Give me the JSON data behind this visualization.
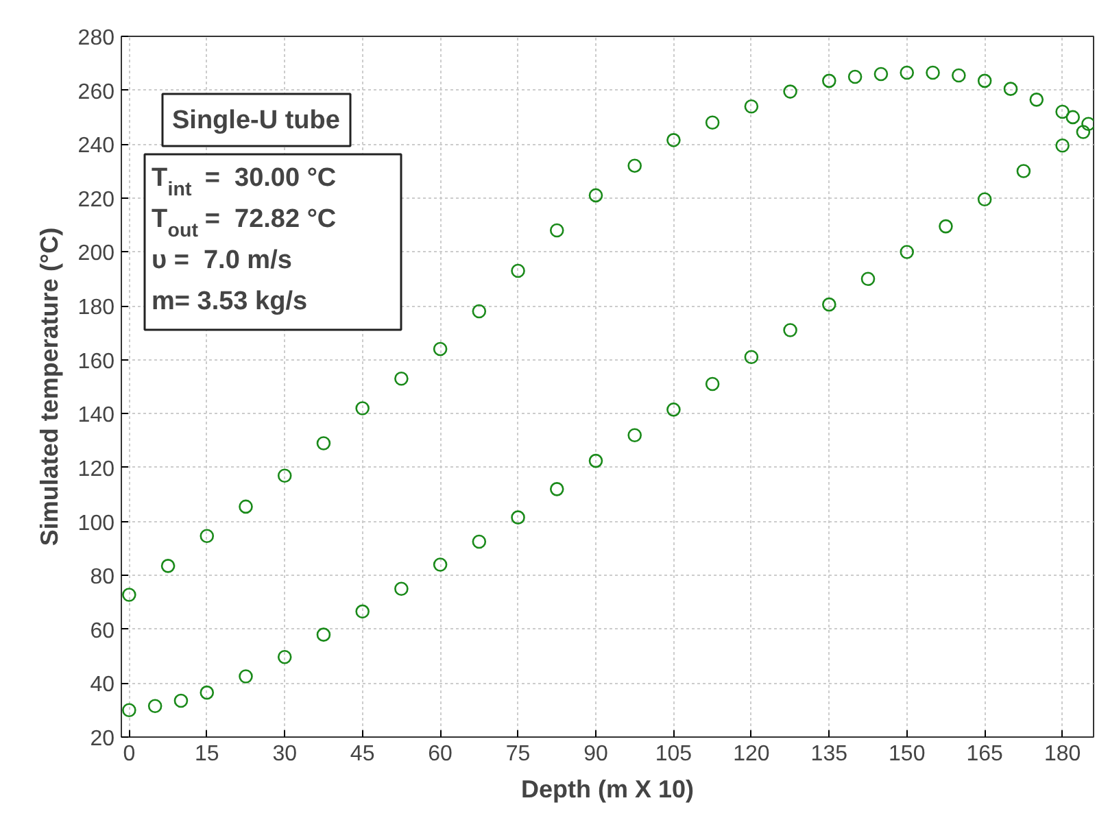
{
  "chart_data": {
    "type": "scatter",
    "xlabel": "Depth (m X 10)",
    "ylabel": "Simulated temperature (°C)",
    "xlim": [
      -1.5,
      186
    ],
    "ylim": [
      20,
      280
    ],
    "xticks": [
      0,
      15,
      30,
      45,
      60,
      75,
      90,
      105,
      120,
      135,
      150,
      165,
      180
    ],
    "yticks": [
      20,
      40,
      60,
      80,
      100,
      120,
      140,
      160,
      180,
      200,
      220,
      240,
      260,
      280
    ],
    "grid": true,
    "marker": "circle",
    "annotations": [
      "Single-U tube",
      "T$_{int}$ =  30.00 °C",
      "T$_{out}$ =  72.82 °C",
      "υ =  7.0 m/s",
      "m= 3.53 kg/s"
    ],
    "series": [
      {
        "color": "#1a8a1a",
        "x": [
          0,
          5,
          10,
          15,
          22.5,
          30,
          37.5,
          45,
          52.5,
          60,
          67.5,
          75,
          82.5,
          90,
          97.5,
          105,
          112.5,
          120,
          127.5,
          135,
          142.5,
          150,
          157.5,
          165,
          172.5,
          180,
          184,
          185,
          182,
          180,
          175,
          170,
          165,
          160,
          155,
          150,
          145,
          140,
          135,
          127.5,
          120,
          112.5,
          105,
          97.5,
          90,
          82.5,
          75,
          67.5,
          60,
          52.5,
          45,
          37.5,
          30,
          22.5,
          15,
          7.5,
          0
        ],
        "values": [
          30,
          31.5,
          33.5,
          36.5,
          42.5,
          49.7,
          58,
          66.6,
          75,
          84,
          92.5,
          101.5,
          112,
          122.5,
          132,
          141.5,
          151,
          161,
          171,
          180.5,
          190,
          200,
          209.5,
          219.5,
          230,
          239.5,
          244.5,
          247.5,
          250,
          252,
          256.5,
          260.5,
          263.5,
          265.5,
          266.5,
          266.5,
          266,
          265,
          263.5,
          259.5,
          254,
          248,
          241.5,
          232,
          221,
          208,
          193,
          178,
          164,
          153,
          142,
          129,
          117,
          105.5,
          94.6,
          83.5,
          72.8
        ]
      }
    ]
  }
}
